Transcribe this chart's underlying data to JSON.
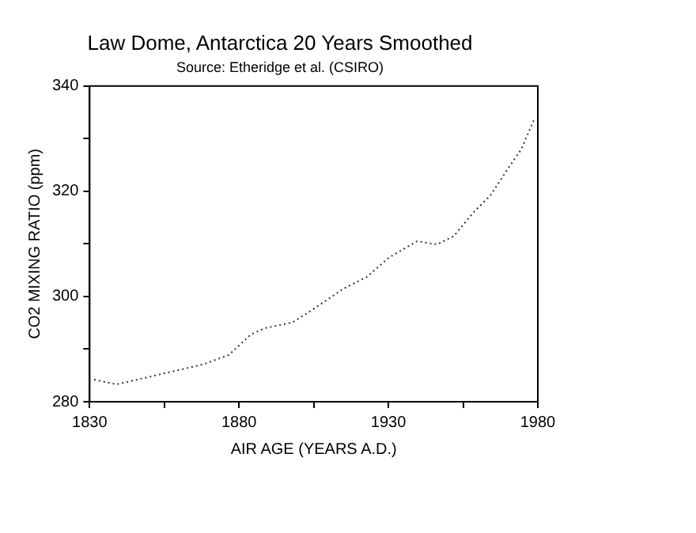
{
  "chart_data": {
    "type": "line",
    "title": "Law Dome, Antarctica 20 Years Smoothed",
    "subtitle": "Source: Etheridge et al. (CSIRO)",
    "xlabel": "AIR AGE (YEARS A.D.)",
    "ylabel": "CO2 MIXING RATIO (ppm)",
    "series": [
      {
        "color": "#333333",
        "x": [
          1831.5,
          1839,
          1855,
          1868,
          1876.6,
          1884,
          1888.8,
          1898,
          1904.6,
          1915,
          1922.7,
          1930.2,
          1939.6,
          1946.3,
          1951.9,
          1958.5,
          1964.1,
          1970.7,
          1974.5,
          1978.8
        ],
        "values": [
          284.2,
          283.3,
          285.4,
          287.1,
          288.9,
          292.8,
          294.0,
          295.1,
          297.5,
          301.5,
          303.7,
          307.4,
          310.5,
          309.9,
          311.5,
          316.0,
          319.2,
          324.9,
          328.0,
          333.7
        ]
      }
    ],
    "xlim": [
      1830,
      1980
    ],
    "xticks": [
      1830,
      {
        "value": 1855,
        "label": null
      },
      1880,
      {
        "value": 1905,
        "label": null
      },
      1930,
      {
        "value": 1955,
        "label": null
      },
      1980
    ],
    "ylim": [
      280,
      340
    ],
    "yticks": [
      280,
      {
        "value": 290,
        "label": null
      },
      300,
      {
        "value": 310,
        "label": null
      },
      320,
      {
        "value": 330,
        "label": null
      },
      340
    ],
    "grid": false,
    "legend": false,
    "marker": "none",
    "line_style": "dotted"
  }
}
